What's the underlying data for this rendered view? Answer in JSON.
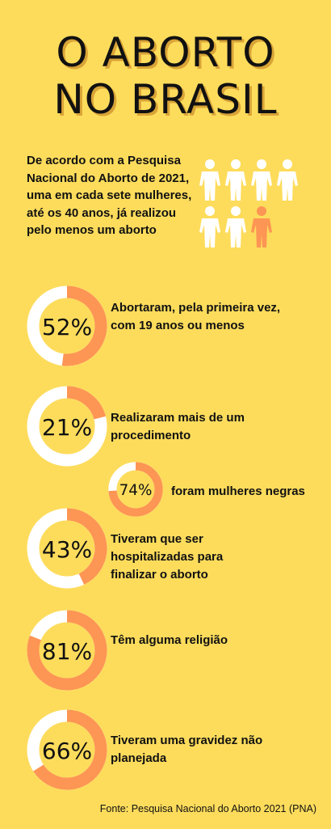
{
  "title": {
    "line1": "O ABORTO",
    "line2": "NO BRASIL"
  },
  "intro": {
    "text": "De acordo com a Pesquisa Nacional do Aborto de 2021, uma em cada sete mulheres, até os 40 anos, já realizou pelo menos um aborto",
    "icon": "woman-icon",
    "figures_total": 7,
    "figures_highlighted": 1
  },
  "stats": [
    {
      "percent_label": "52%",
      "value": 52,
      "text": "Abortaram, pela primeira vez, com 19 anos ou menos"
    },
    {
      "percent_label": "21%",
      "value": 21,
      "text": "Realizaram mais de um procedimento"
    },
    {
      "percent_label": "74%",
      "value": 74,
      "text": "foram mulheres negras"
    },
    {
      "percent_label": "43%",
      "value": 43,
      "text": "Tiveram que ser hospitalizadas para finalizar o aborto"
    },
    {
      "percent_label": "81%",
      "value": 81,
      "text": "Têm alguma religião"
    },
    {
      "percent_label": "66%",
      "value": 66,
      "text": "Tiveram uma gravidez não planejada"
    }
  ],
  "source": "Fonte: Pesquisa Nacional do Aborto 2021 (PNA)",
  "colors": {
    "background": "#fddc5c",
    "accent": "#fd9554",
    "track": "#ffffff",
    "text": "#111111",
    "title_shadow": "#d9a437"
  }
}
